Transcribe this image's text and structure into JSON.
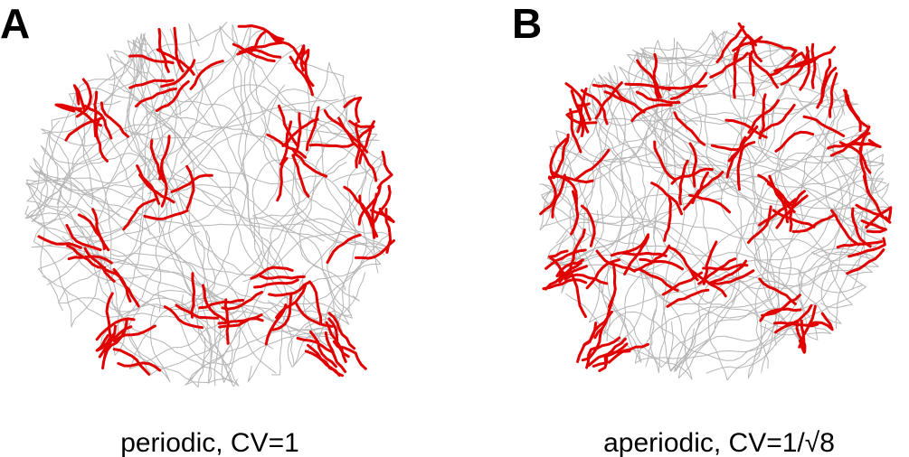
{
  "panels": [
    {
      "label": "A",
      "caption": "periodic, CV=1"
    },
    {
      "label": "B",
      "caption": "aperiodic, CV=1/√8"
    }
  ]
}
